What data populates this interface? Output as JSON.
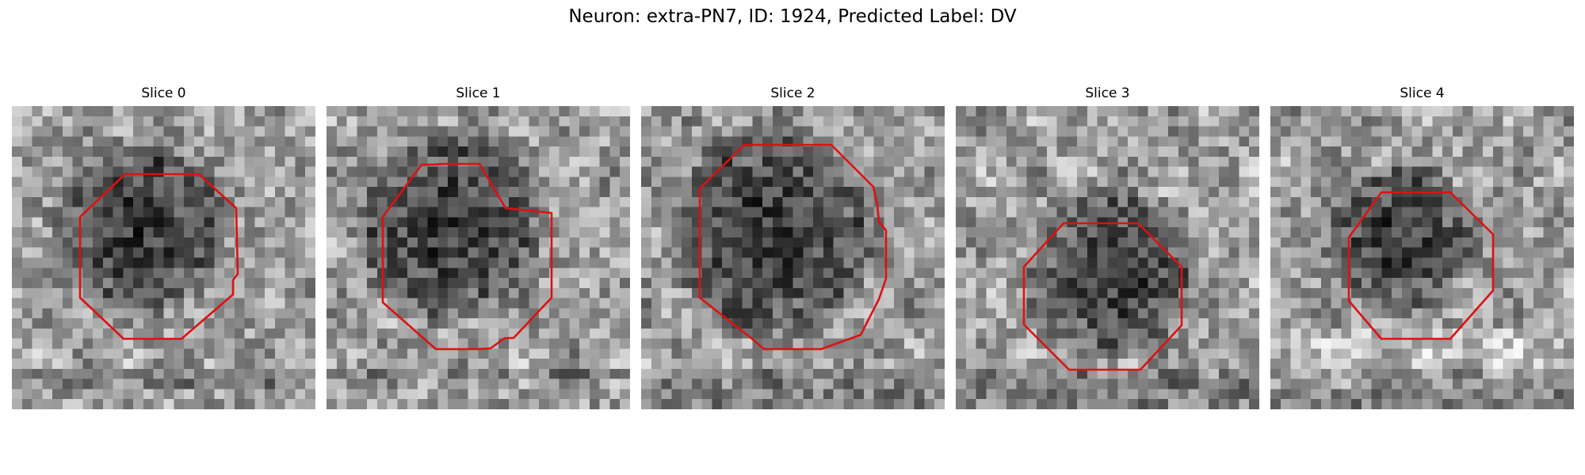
{
  "figure": {
    "title": "Neuron: extra-PN7, ID: 1924, Predicted Label: DV",
    "contour_color": "#dd1111",
    "panels": [
      {
        "title": "Slice 0"
      },
      {
        "title": "Slice 1"
      },
      {
        "title": "Slice 2"
      },
      {
        "title": "Slice 3"
      },
      {
        "title": "Slice 4"
      }
    ]
  }
}
